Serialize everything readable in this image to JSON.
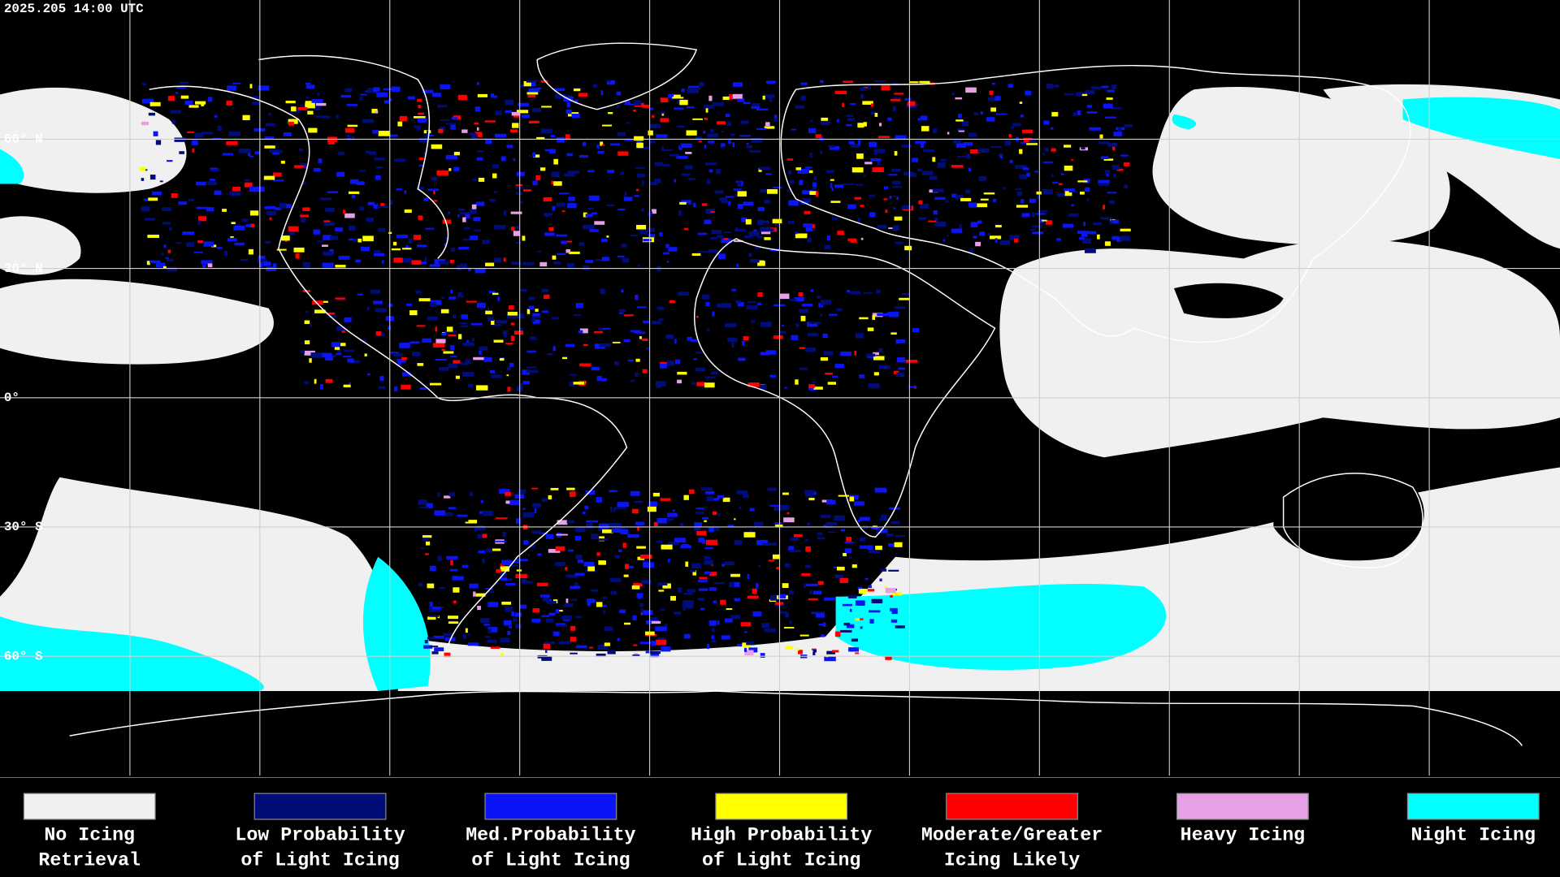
{
  "timestamp": "2025.205 14:00 UTC",
  "latitude_labels": [
    "60° N",
    "30° N",
    "0°",
    "30° S",
    "60° S"
  ],
  "legend": [
    {
      "lines": [
        "No Icing",
        "Retrieval"
      ],
      "color": "#f0f0f0"
    },
    {
      "lines": [
        "Low Probability",
        "of Light Icing"
      ],
      "color": "#000c78"
    },
    {
      "lines": [
        "Med.Probability",
        "of Light Icing"
      ],
      "color": "#0a14f5"
    },
    {
      "lines": [
        "High Probability",
        "of Light Icing"
      ],
      "color": "#ffff00"
    },
    {
      "lines": [
        "Moderate/Greater",
        "Icing Likely"
      ],
      "color": "#ff0000"
    },
    {
      "lines": [
        "Heavy Icing"
      ],
      "color": "#e6a0e6"
    },
    {
      "lines": [
        "Night Icing"
      ],
      "color": "#00ffff"
    }
  ]
}
